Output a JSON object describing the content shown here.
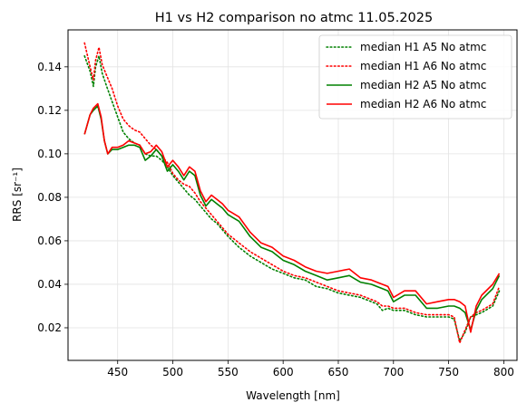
{
  "chart_data": {
    "type": "line",
    "title": "H1 vs H2 comparison no atmc 11.05.2025",
    "xlabel": "Wavelength [nm]",
    "ylabel": "RRS [sr⁻¹]",
    "xlim": [
      405,
      812
    ],
    "ylim": [
      0.005,
      0.157
    ],
    "xticks": [
      450,
      500,
      550,
      600,
      650,
      700,
      750,
      800
    ],
    "yticks": [
      0.02,
      0.04,
      0.06,
      0.08,
      0.1,
      0.12,
      0.14
    ],
    "ytick_labels": [
      "0.02",
      "0.04",
      "0.06",
      "0.08",
      "0.10",
      "0.12",
      "0.14"
    ],
    "grid": true,
    "legend_position": "top-right",
    "series": [
      {
        "name": "median H1 A5 No atmc",
        "color": "#008000",
        "style": "dotted",
        "x": [
          420,
          425,
          428,
          430,
          433,
          436,
          440,
          445,
          450,
          455,
          460,
          465,
          470,
          475,
          480,
          485,
          490,
          495,
          500,
          505,
          510,
          515,
          520,
          525,
          530,
          535,
          540,
          545,
          550,
          560,
          570,
          580,
          590,
          600,
          610,
          620,
          630,
          640,
          650,
          660,
          670,
          680,
          685,
          690,
          695,
          700,
          710,
          720,
          730,
          740,
          750,
          755,
          760,
          765,
          770,
          775,
          780,
          790,
          796
        ],
        "y": [
          0.145,
          0.138,
          0.131,
          0.14,
          0.145,
          0.137,
          0.131,
          0.124,
          0.117,
          0.11,
          0.107,
          0.105,
          0.104,
          0.1,
          0.099,
          0.099,
          0.097,
          0.094,
          0.09,
          0.087,
          0.084,
          0.081,
          0.079,
          0.076,
          0.073,
          0.07,
          0.068,
          0.065,
          0.062,
          0.057,
          0.053,
          0.05,
          0.047,
          0.045,
          0.043,
          0.042,
          0.039,
          0.038,
          0.036,
          0.035,
          0.034,
          0.032,
          0.031,
          0.028,
          0.029,
          0.028,
          0.028,
          0.026,
          0.025,
          0.025,
          0.025,
          0.024,
          0.014,
          0.018,
          0.025,
          0.026,
          0.027,
          0.03,
          0.037
        ]
      },
      {
        "name": "median H1 A6 No atmc",
        "color": "#ff0000",
        "style": "dotted",
        "x": [
          420,
          425,
          428,
          430,
          433,
          436,
          440,
          445,
          450,
          455,
          460,
          465,
          470,
          475,
          480,
          485,
          490,
          495,
          500,
          505,
          510,
          515,
          520,
          525,
          530,
          535,
          540,
          545,
          550,
          560,
          570,
          580,
          590,
          600,
          610,
          620,
          630,
          640,
          650,
          660,
          670,
          680,
          685,
          690,
          695,
          700,
          710,
          720,
          730,
          740,
          750,
          755,
          760,
          765,
          770,
          775,
          780,
          790,
          796
        ],
        "y": [
          0.151,
          0.14,
          0.134,
          0.143,
          0.149,
          0.141,
          0.136,
          0.13,
          0.122,
          0.116,
          0.113,
          0.111,
          0.11,
          0.107,
          0.104,
          0.102,
          0.099,
          0.096,
          0.091,
          0.088,
          0.086,
          0.085,
          0.082,
          0.078,
          0.075,
          0.072,
          0.069,
          0.066,
          0.063,
          0.059,
          0.055,
          0.052,
          0.049,
          0.046,
          0.044,
          0.043,
          0.041,
          0.039,
          0.037,
          0.036,
          0.035,
          0.033,
          0.032,
          0.03,
          0.03,
          0.029,
          0.029,
          0.027,
          0.026,
          0.026,
          0.026,
          0.025,
          0.013,
          0.019,
          0.025,
          0.027,
          0.028,
          0.031,
          0.039
        ]
      },
      {
        "name": "median H2 A5 No atmc",
        "color": "#008000",
        "style": "solid",
        "x": [
          420,
          425,
          428,
          432,
          435,
          438,
          441,
          445,
          450,
          455,
          460,
          465,
          470,
          475,
          480,
          485,
          490,
          495,
          500,
          505,
          510,
          515,
          520,
          525,
          530,
          535,
          540,
          545,
          550,
          560,
          570,
          580,
          590,
          600,
          610,
          620,
          630,
          640,
          650,
          660,
          670,
          680,
          685,
          690,
          695,
          700,
          710,
          720,
          730,
          740,
          750,
          755,
          760,
          765,
          770,
          775,
          780,
          790,
          796
        ],
        "y": [
          0.109,
          0.118,
          0.12,
          0.122,
          0.116,
          0.106,
          0.1,
          0.102,
          0.102,
          0.103,
          0.104,
          0.104,
          0.103,
          0.097,
          0.099,
          0.102,
          0.099,
          0.092,
          0.095,
          0.092,
          0.088,
          0.092,
          0.09,
          0.081,
          0.076,
          0.079,
          0.077,
          0.075,
          0.072,
          0.069,
          0.062,
          0.057,
          0.055,
          0.051,
          0.049,
          0.046,
          0.044,
          0.042,
          0.043,
          0.044,
          0.041,
          0.04,
          0.039,
          0.038,
          0.037,
          0.032,
          0.035,
          0.035,
          0.029,
          0.029,
          0.03,
          0.03,
          0.029,
          0.027,
          0.019,
          0.028,
          0.033,
          0.038,
          0.044
        ]
      },
      {
        "name": "median H2 A6 No atmc",
        "color": "#ff0000",
        "style": "solid",
        "x": [
          420,
          425,
          428,
          432,
          435,
          438,
          441,
          445,
          450,
          455,
          460,
          465,
          470,
          475,
          480,
          485,
          490,
          495,
          500,
          505,
          510,
          515,
          520,
          525,
          530,
          535,
          540,
          545,
          550,
          560,
          570,
          580,
          590,
          600,
          610,
          620,
          630,
          640,
          650,
          660,
          670,
          680,
          685,
          690,
          695,
          700,
          710,
          720,
          730,
          740,
          750,
          755,
          760,
          765,
          770,
          775,
          780,
          790,
          796
        ],
        "y": [
          0.109,
          0.118,
          0.121,
          0.123,
          0.117,
          0.106,
          0.1,
          0.103,
          0.103,
          0.104,
          0.106,
          0.105,
          0.104,
          0.1,
          0.101,
          0.104,
          0.101,
          0.094,
          0.097,
          0.094,
          0.09,
          0.094,
          0.092,
          0.083,
          0.078,
          0.081,
          0.079,
          0.077,
          0.074,
          0.071,
          0.064,
          0.059,
          0.057,
          0.053,
          0.051,
          0.048,
          0.046,
          0.045,
          0.046,
          0.047,
          0.043,
          0.042,
          0.041,
          0.04,
          0.039,
          0.034,
          0.037,
          0.037,
          0.031,
          0.032,
          0.033,
          0.033,
          0.032,
          0.03,
          0.018,
          0.03,
          0.035,
          0.04,
          0.045
        ]
      }
    ]
  }
}
